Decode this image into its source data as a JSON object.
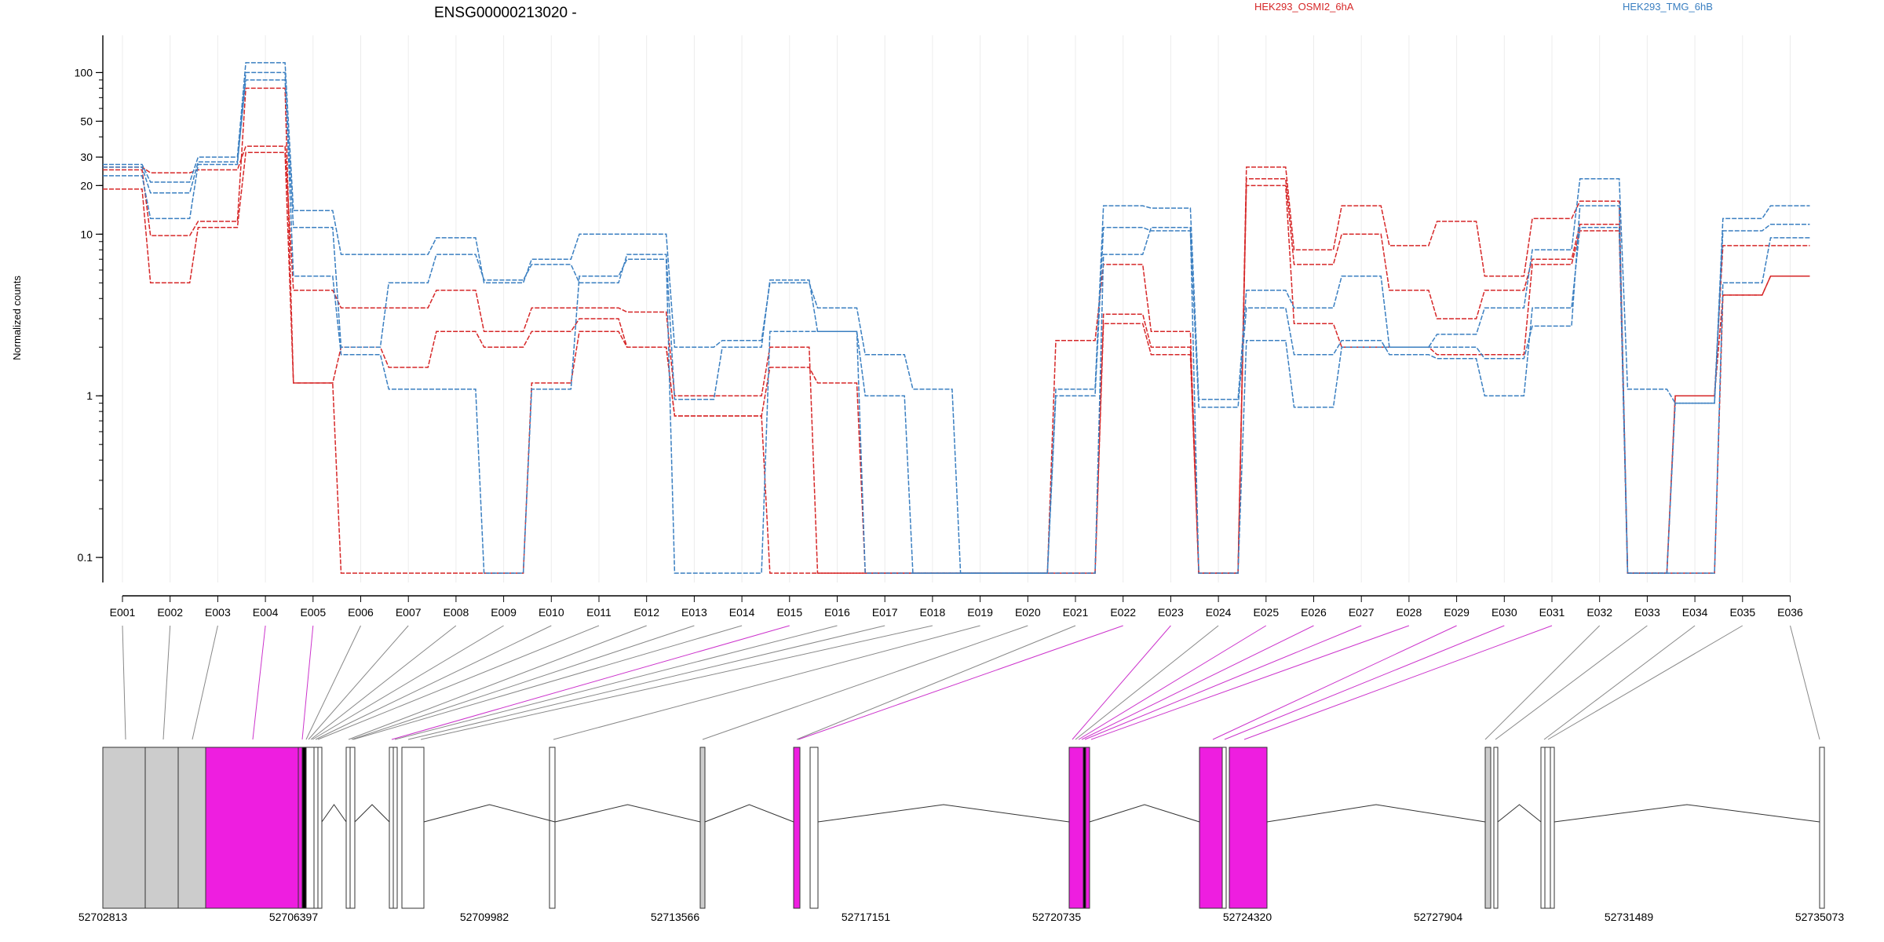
{
  "chart_data": {
    "type": "line",
    "title": "ENSG00000213020 -",
    "ylabel": "Normalized counts",
    "yscale": "log",
    "ylim": [
      0.07,
      170
    ],
    "yticks": [
      0.1,
      1,
      10,
      20,
      30,
      50,
      100
    ],
    "ytick_labels": [
      "0.1",
      "1",
      "10",
      "20",
      "30",
      "50",
      "100"
    ],
    "legend": [
      {
        "label": "HEK293_OSMI2_6hA",
        "color": "#d62728"
      },
      {
        "label": "HEK293_TMG_6hB",
        "color": "#3a7fc1"
      }
    ],
    "categories": [
      "E001",
      "E002",
      "E003",
      "E004",
      "E005",
      "E006",
      "E007",
      "E008",
      "E009",
      "E010",
      "E011",
      "E012",
      "E013",
      "E014",
      "E015",
      "E016",
      "E017",
      "E018",
      "E019",
      "E020",
      "E021",
      "E022",
      "E023",
      "E024",
      "E025",
      "E026",
      "E027",
      "E028",
      "E029",
      "E030",
      "E031",
      "E032",
      "E033",
      "E034",
      "E035",
      "E036"
    ],
    "series": [
      {
        "group": 0,
        "values": [
          26,
          24,
          25,
          35,
          4.5,
          3.5,
          3.5,
          4.5,
          2.5,
          3.5,
          3.5,
          3.3,
          1.0,
          1.0,
          2.0,
          0.08,
          0.08,
          0.08,
          0.08,
          0.08,
          2.2,
          6.5,
          2.5,
          0.08,
          26,
          8.0,
          15,
          8.5,
          12,
          5.5,
          12.5,
          16,
          0.08,
          1.0,
          8.5,
          8.5
        ]
      },
      {
        "group": 0,
        "values": [
          25,
          9.8,
          12,
          80,
          1.2,
          2.0,
          1.5,
          2.5,
          2.0,
          2.5,
          3.0,
          2.0,
          0.75,
          0.75,
          1.5,
          1.2,
          0.08,
          0.08,
          0.08,
          0.08,
          0.08,
          3.2,
          2.0,
          0.08,
          22,
          6.5,
          10,
          4.5,
          3.0,
          4.5,
          7.0,
          11.5,
          0.08,
          1.0,
          4.2,
          5.5
        ]
      },
      {
        "group": 0,
        "values": [
          19,
          5.0,
          11,
          32,
          1.2,
          0.08,
          0.08,
          0.08,
          0.08,
          1.2,
          2.5,
          2.0,
          0.75,
          0.75,
          0.08,
          0.08,
          0.08,
          0.08,
          0.08,
          0.08,
          0.08,
          2.8,
          1.8,
          0.08,
          20,
          2.8,
          2.0,
          2.0,
          1.8,
          1.8,
          6.5,
          10.5,
          0.08,
          0.08,
          4.2,
          5.5
        ]
      },
      {
        "group": 1,
        "values": [
          27,
          21,
          30,
          115,
          14,
          7.5,
          7.5,
          9.5,
          5.0,
          7.0,
          10,
          10,
          2.0,
          2.2,
          5.0,
          3.5,
          1.8,
          1.1,
          0.08,
          0.08,
          1.1,
          15,
          14.5,
          0.95,
          4.5,
          3.5,
          5.5,
          2.0,
          2.4,
          3.5,
          8.0,
          22,
          1.1,
          0.9,
          12.5,
          15
        ]
      },
      {
        "group": 1,
        "values": [
          26,
          18,
          28,
          90,
          11,
          2.0,
          5.0,
          7.5,
          5.2,
          6.5,
          5.0,
          7.5,
          0.95,
          2.0,
          5.2,
          2.5,
          1.0,
          0.08,
          0.08,
          0.08,
          1.0,
          11,
          10.5,
          0.85,
          3.5,
          1.8,
          2.2,
          1.8,
          1.7,
          1.0,
          3.5,
          11,
          0.08,
          0.9,
          10.5,
          11.5
        ]
      },
      {
        "group": 1,
        "values": [
          23,
          12.5,
          27,
          100,
          5.5,
          1.8,
          1.1,
          1.1,
          0.08,
          1.1,
          5.5,
          7.0,
          0.08,
          0.08,
          2.5,
          2.5,
          0.08,
          0.08,
          0.08,
          0.08,
          0.08,
          7.5,
          11,
          0.08,
          2.2,
          0.85,
          2.0,
          2.0,
          2.0,
          1.7,
          2.7,
          15,
          0.08,
          0.08,
          5.0,
          9.5
        ]
      }
    ],
    "genomic_axis_labels": [
      "52702813",
      "52706397",
      "52709982",
      "52713566",
      "52717151",
      "52720735",
      "52724320",
      "52727904",
      "52731489",
      "52735073"
    ],
    "highlighted_exons": [
      "E004",
      "E005",
      "E015",
      "E022",
      "E023",
      "E025",
      "E026"
    ],
    "highlight_color": "#ee1ee0",
    "exon_fill_gray": "#cccccc",
    "grid": true,
    "legend_placement": "top-right"
  }
}
